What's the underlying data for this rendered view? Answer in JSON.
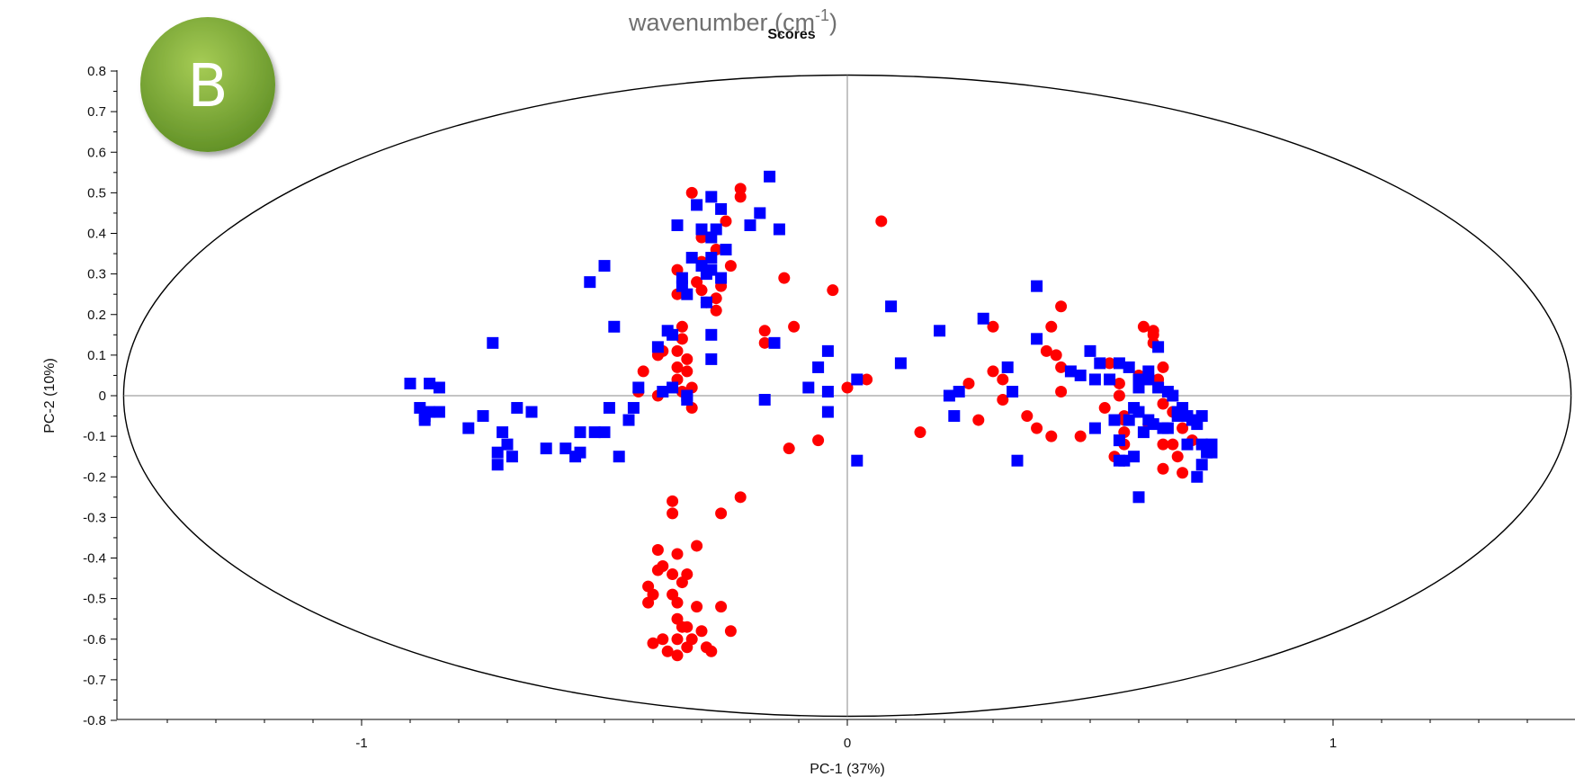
{
  "heading": {
    "prefix": "wavenumber (cm",
    "sup": "-1",
    "suffix": ")"
  },
  "badge": {
    "letter": "B",
    "color": "#7aa834"
  },
  "colors": {
    "series_1": "#ff0000",
    "series_2": "#0000ff",
    "axis": "#888888",
    "ellipse": "#000000"
  },
  "chart_data": {
    "type": "scatter",
    "title": "Scores",
    "xlabel": "PC-1 (37%)",
    "ylabel": "PC-2 (10%)",
    "xlim": [
      -1.5,
      1.5
    ],
    "ylim": [
      -0.8,
      0.8
    ],
    "x_ticks": [
      -1,
      0,
      1
    ],
    "x_tick_labels": [
      "-1",
      "0",
      "1"
    ],
    "y_ticks": [
      0.8,
      0.7,
      0.6,
      0.5,
      0.4,
      0.3,
      0.2,
      0.1,
      0,
      -0.1,
      -0.2,
      -0.3,
      -0.4,
      -0.5,
      -0.6,
      -0.7,
      -0.8
    ],
    "y_tick_labels": [
      "0.8",
      "0.7",
      "0.6",
      "0.5",
      "0.4",
      "0.3",
      "0.2",
      "0.1",
      "0",
      "-0.1",
      "-0.2",
      "-0.3",
      "-0.4",
      "-0.5",
      "-0.6",
      "-0.7",
      "-0.8"
    ],
    "ellipse": {
      "cx": 0,
      "cy": 0,
      "rx": 1.49,
      "ry": 0.79
    },
    "grid": false,
    "legend": "none",
    "series": [
      {
        "marker": "circle",
        "color": "#ff0000",
        "points": [
          [
            -0.32,
            0.5
          ],
          [
            -0.22,
            0.51
          ],
          [
            -0.22,
            0.49
          ],
          [
            -0.25,
            0.43
          ],
          [
            -0.3,
            0.39
          ],
          [
            -0.27,
            0.36
          ],
          [
            -0.3,
            0.33
          ],
          [
            -0.24,
            0.32
          ],
          [
            -0.35,
            0.31
          ],
          [
            -0.31,
            0.28
          ],
          [
            -0.26,
            0.27
          ],
          [
            -0.3,
            0.26
          ],
          [
            -0.35,
            0.25
          ],
          [
            -0.29,
            0.23
          ],
          [
            -0.27,
            0.24
          ],
          [
            -0.27,
            0.21
          ],
          [
            0.07,
            0.43
          ],
          [
            -0.13,
            0.29
          ],
          [
            -0.03,
            0.26
          ],
          [
            -0.34,
            0.17
          ],
          [
            -0.34,
            0.14
          ],
          [
            -0.35,
            0.11
          ],
          [
            -0.33,
            0.09
          ],
          [
            -0.38,
            0.11
          ],
          [
            -0.39,
            0.1
          ],
          [
            -0.35,
            0.07
          ],
          [
            -0.33,
            0.06
          ],
          [
            -0.42,
            0.06
          ],
          [
            -0.35,
            0.04
          ],
          [
            -0.32,
            0.02
          ],
          [
            -0.34,
            0.01
          ],
          [
            -0.43,
            0.01
          ],
          [
            -0.39,
            0.0
          ],
          [
            -0.32,
            -0.03
          ],
          [
            -0.17,
            0.16
          ],
          [
            -0.17,
            0.13
          ],
          [
            -0.11,
            0.17
          ],
          [
            0.04,
            0.04
          ],
          [
            0.0,
            0.02
          ],
          [
            -0.06,
            -0.11
          ],
          [
            -0.12,
            -0.13
          ],
          [
            0.15,
            -0.09
          ],
          [
            0.25,
            0.03
          ],
          [
            0.27,
            -0.06
          ],
          [
            0.3,
            0.06
          ],
          [
            0.32,
            0.04
          ],
          [
            0.32,
            -0.01
          ],
          [
            0.3,
            0.17
          ],
          [
            0.44,
            0.22
          ],
          [
            0.42,
            0.17
          ],
          [
            0.41,
            0.11
          ],
          [
            0.43,
            0.1
          ],
          [
            0.44,
            0.07
          ],
          [
            0.44,
            0.01
          ],
          [
            0.37,
            -0.05
          ],
          [
            0.39,
            -0.08
          ],
          [
            0.42,
            -0.1
          ],
          [
            0.48,
            -0.1
          ],
          [
            0.53,
            -0.03
          ],
          [
            0.57,
            -0.05
          ],
          [
            0.56,
            0.0
          ],
          [
            0.56,
            0.03
          ],
          [
            0.6,
            0.05
          ],
          [
            0.54,
            0.08
          ],
          [
            0.57,
            -0.06
          ],
          [
            0.57,
            -0.09
          ],
          [
            0.57,
            -0.12
          ],
          [
            0.55,
            -0.15
          ],
          [
            0.57,
            -0.16
          ],
          [
            0.63,
            0.16
          ],
          [
            0.63,
            0.13
          ],
          [
            0.65,
            0.07
          ],
          [
            0.65,
            -0.02
          ],
          [
            0.67,
            -0.04
          ],
          [
            0.69,
            -0.08
          ],
          [
            0.65,
            -0.12
          ],
          [
            0.68,
            -0.15
          ],
          [
            0.65,
            -0.18
          ],
          [
            0.69,
            -0.19
          ],
          [
            0.62,
            -0.07
          ],
          [
            0.64,
            0.04
          ],
          [
            0.63,
            0.15
          ],
          [
            0.61,
            0.17
          ],
          [
            0.67,
            -0.12
          ],
          [
            0.71,
            -0.11
          ],
          [
            -0.36,
            -0.26
          ],
          [
            -0.36,
            -0.29
          ],
          [
            -0.26,
            -0.29
          ],
          [
            -0.22,
            -0.25
          ],
          [
            -0.39,
            -0.38
          ],
          [
            -0.31,
            -0.37
          ],
          [
            -0.35,
            -0.39
          ],
          [
            -0.38,
            -0.42
          ],
          [
            -0.39,
            -0.43
          ],
          [
            -0.36,
            -0.44
          ],
          [
            -0.33,
            -0.44
          ],
          [
            -0.34,
            -0.46
          ],
          [
            -0.41,
            -0.47
          ],
          [
            -0.4,
            -0.49
          ],
          [
            -0.36,
            -0.49
          ],
          [
            -0.35,
            -0.51
          ],
          [
            -0.41,
            -0.51
          ],
          [
            -0.31,
            -0.52
          ],
          [
            -0.26,
            -0.52
          ],
          [
            -0.35,
            -0.55
          ],
          [
            -0.33,
            -0.57
          ],
          [
            -0.3,
            -0.58
          ],
          [
            -0.35,
            -0.6
          ],
          [
            -0.32,
            -0.6
          ],
          [
            -0.38,
            -0.6
          ],
          [
            -0.4,
            -0.61
          ],
          [
            -0.33,
            -0.62
          ],
          [
            -0.29,
            -0.62
          ],
          [
            -0.37,
            -0.63
          ],
          [
            -0.35,
            -0.64
          ],
          [
            -0.28,
            -0.63
          ],
          [
            -0.24,
            -0.58
          ],
          [
            -0.34,
            -0.57
          ]
        ]
      },
      {
        "marker": "square",
        "color": "#0000ff",
        "points": [
          [
            -0.16,
            0.54
          ],
          [
            -0.28,
            0.49
          ],
          [
            -0.31,
            0.47
          ],
          [
            -0.26,
            0.46
          ],
          [
            -0.18,
            0.45
          ],
          [
            -0.2,
            0.42
          ],
          [
            -0.14,
            0.41
          ],
          [
            -0.35,
            0.42
          ],
          [
            -0.3,
            0.41
          ],
          [
            -0.27,
            0.41
          ],
          [
            -0.28,
            0.39
          ],
          [
            -0.25,
            0.36
          ],
          [
            -0.28,
            0.34
          ],
          [
            -0.32,
            0.34
          ],
          [
            -0.3,
            0.32
          ],
          [
            -0.28,
            0.31
          ],
          [
            -0.29,
            0.3
          ],
          [
            -0.26,
            0.29
          ],
          [
            -0.34,
            0.29
          ],
          [
            -0.34,
            0.27
          ],
          [
            -0.33,
            0.25
          ],
          [
            -0.29,
            0.23
          ],
          [
            -0.5,
            0.32
          ],
          [
            -0.53,
            0.28
          ],
          [
            -0.48,
            0.17
          ],
          [
            -0.37,
            0.16
          ],
          [
            -0.36,
            0.15
          ],
          [
            -0.39,
            0.12
          ],
          [
            -0.28,
            0.15
          ],
          [
            -0.28,
            0.09
          ],
          [
            -0.15,
            0.13
          ],
          [
            0.09,
            0.22
          ],
          [
            0.19,
            0.16
          ],
          [
            0.28,
            0.19
          ],
          [
            0.39,
            0.27
          ],
          [
            0.39,
            0.14
          ],
          [
            0.11,
            0.08
          ],
          [
            -0.06,
            0.07
          ],
          [
            -0.04,
            0.11
          ],
          [
            -0.08,
            0.02
          ],
          [
            -0.04,
            0.01
          ],
          [
            0.02,
            0.04
          ],
          [
            0.21,
            0.0
          ],
          [
            0.23,
            0.01
          ],
          [
            0.33,
            0.07
          ],
          [
            0.34,
            0.01
          ],
          [
            0.22,
            -0.05
          ],
          [
            -0.04,
            -0.04
          ],
          [
            0.02,
            -0.16
          ],
          [
            -0.17,
            -0.01
          ],
          [
            0.35,
            -0.16
          ],
          [
            -0.9,
            0.03
          ],
          [
            -0.86,
            0.03
          ],
          [
            -0.84,
            0.02
          ],
          [
            -0.88,
            -0.03
          ],
          [
            -0.86,
            -0.04
          ],
          [
            -0.87,
            -0.05
          ],
          [
            -0.87,
            -0.06
          ],
          [
            -0.84,
            -0.04
          ],
          [
            -0.73,
            0.13
          ],
          [
            -0.75,
            -0.05
          ],
          [
            -0.68,
            -0.03
          ],
          [
            -0.65,
            -0.04
          ],
          [
            -0.78,
            -0.08
          ],
          [
            -0.71,
            -0.09
          ],
          [
            -0.7,
            -0.12
          ],
          [
            -0.72,
            -0.14
          ],
          [
            -0.69,
            -0.15
          ],
          [
            -0.72,
            -0.17
          ],
          [
            -0.62,
            -0.13
          ],
          [
            -0.58,
            -0.13
          ],
          [
            -0.56,
            -0.15
          ],
          [
            -0.55,
            -0.14
          ],
          [
            -0.55,
            -0.09
          ],
          [
            -0.52,
            -0.09
          ],
          [
            -0.5,
            -0.09
          ],
          [
            -0.49,
            -0.03
          ],
          [
            -0.47,
            -0.15
          ],
          [
            -0.45,
            -0.06
          ],
          [
            -0.44,
            -0.03
          ],
          [
            -0.43,
            0.02
          ],
          [
            -0.38,
            0.01
          ],
          [
            -0.36,
            0.02
          ],
          [
            -0.33,
            0.0
          ],
          [
            -0.33,
            -0.01
          ],
          [
            0.48,
            0.05
          ],
          [
            0.5,
            0.11
          ],
          [
            0.51,
            0.04
          ],
          [
            0.52,
            0.08
          ],
          [
            0.54,
            0.04
          ],
          [
            0.56,
            0.08
          ],
          [
            0.58,
            0.07
          ],
          [
            0.6,
            0.04
          ],
          [
            0.6,
            0.02
          ],
          [
            0.62,
            0.06
          ],
          [
            0.64,
            0.12
          ],
          [
            0.62,
            0.04
          ],
          [
            0.64,
            0.02
          ],
          [
            0.66,
            0.01
          ],
          [
            0.67,
            0.0
          ],
          [
            0.68,
            -0.04
          ],
          [
            0.69,
            -0.03
          ],
          [
            0.7,
            -0.05
          ],
          [
            0.71,
            -0.06
          ],
          [
            0.73,
            -0.05
          ],
          [
            0.72,
            -0.07
          ],
          [
            0.73,
            -0.12
          ],
          [
            0.74,
            -0.14
          ],
          [
            0.73,
            -0.17
          ],
          [
            0.72,
            -0.2
          ],
          [
            0.75,
            -0.12
          ],
          [
            0.75,
            -0.14
          ],
          [
            0.7,
            -0.12
          ],
          [
            0.66,
            -0.08
          ],
          [
            0.65,
            -0.08
          ],
          [
            0.63,
            -0.07
          ],
          [
            0.61,
            -0.09
          ],
          [
            0.6,
            -0.04
          ],
          [
            0.59,
            -0.03
          ],
          [
            0.58,
            -0.06
          ],
          [
            0.55,
            -0.06
          ],
          [
            0.56,
            -0.11
          ],
          [
            0.57,
            -0.16
          ],
          [
            0.59,
            -0.15
          ],
          [
            0.56,
            -0.16
          ],
          [
            0.6,
            -0.25
          ],
          [
            0.51,
            -0.08
          ],
          [
            0.46,
            0.06
          ],
          [
            0.62,
            -0.06
          ],
          [
            0.68,
            -0.05
          ]
        ]
      }
    ]
  }
}
